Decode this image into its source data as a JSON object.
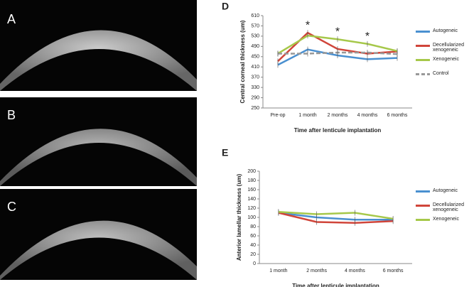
{
  "image_panels": [
    "A",
    "B",
    "C"
  ],
  "chart_data": [
    {
      "type": "line",
      "panel": "D",
      "y_label": "Central corneal thickness (um)",
      "x_label": "Time after lenticule implantation",
      "categories": [
        "Pre-op",
        "1 month",
        "2 months",
        "4 months",
        "6 months"
      ],
      "ylim": [
        250,
        610
      ],
      "yticks": [
        250,
        290,
        330,
        370,
        410,
        450,
        490,
        530,
        570,
        610
      ],
      "series": [
        {
          "name": "Autogeneic",
          "color": "#4a90d0",
          "values": [
            418,
            478,
            455,
            440,
            445
          ]
        },
        {
          "name": "Decellularized xenogeneic",
          "color": "#d0453a",
          "values": [
            432,
            543,
            480,
            462,
            470
          ]
        },
        {
          "name": "Xenogeneic",
          "color": "#a6c84a",
          "values": [
            462,
            532,
            518,
            500,
            472
          ]
        },
        {
          "name": "Control",
          "color": "#999999",
          "dashed": true,
          "values": [
            462,
            462,
            466,
            466,
            460
          ]
        }
      ],
      "annotations": [
        {
          "text": "*",
          "x": "1 month"
        },
        {
          "text": "*",
          "x": "2 months"
        },
        {
          "text": "*",
          "x": "4 months"
        }
      ]
    },
    {
      "type": "line",
      "panel": "E",
      "y_label": "Anterior lamellar thickness (um)",
      "x_label": "Time after lenticule implantation",
      "categories": [
        "1 month",
        "2 months",
        "4 months",
        "6 months"
      ],
      "ylim": [
        0,
        200
      ],
      "yticks": [
        0,
        20,
        40,
        60,
        80,
        100,
        120,
        140,
        160,
        180,
        200
      ],
      "series": [
        {
          "name": "Autogeneic",
          "color": "#4a90d0",
          "values": [
            110,
            100,
            95,
            95
          ]
        },
        {
          "name": "Decellularized xenogeneic",
          "color": "#d0453a",
          "values": [
            110,
            90,
            88,
            92
          ]
        },
        {
          "name": "Xenogeneic",
          "color": "#a6c84a",
          "values": [
            112,
            107,
            110,
            97
          ]
        }
      ]
    }
  ]
}
